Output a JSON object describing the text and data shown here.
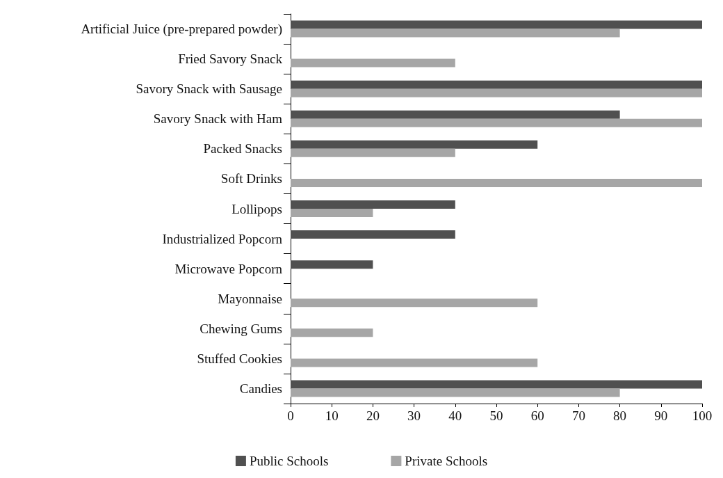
{
  "chart_data": {
    "type": "bar",
    "orientation": "horizontal",
    "categories": [
      "Artificial Juice (pre-prepared powder)",
      "Fried Savory Snack",
      "Savory Snack with Sausage",
      "Savory Snack with Ham",
      "Packed Snacks",
      "Soft Drinks",
      "Lollipops",
      "Industrialized Popcorn",
      "Microwave Popcorn",
      "Mayonnaise",
      "Chewing Gums",
      "Stuffed Cookies",
      "Candies"
    ],
    "series": [
      {
        "name": "Public Schools",
        "color": "#505050",
        "values": [
          100,
          0,
          100,
          80,
          60,
          0,
          40,
          40,
          20,
          0,
          0,
          0,
          100
        ]
      },
      {
        "name": "Private Schools",
        "color": "#a6a6a6",
        "values": [
          80,
          40,
          100,
          100,
          40,
          100,
          20,
          0,
          0,
          60,
          20,
          60,
          80
        ]
      }
    ],
    "xlim": [
      0,
      100
    ],
    "xticks": [
      0,
      10,
      20,
      30,
      40,
      50,
      60,
      70,
      80,
      90,
      100
    ],
    "grid": false,
    "legend": "bottom"
  }
}
